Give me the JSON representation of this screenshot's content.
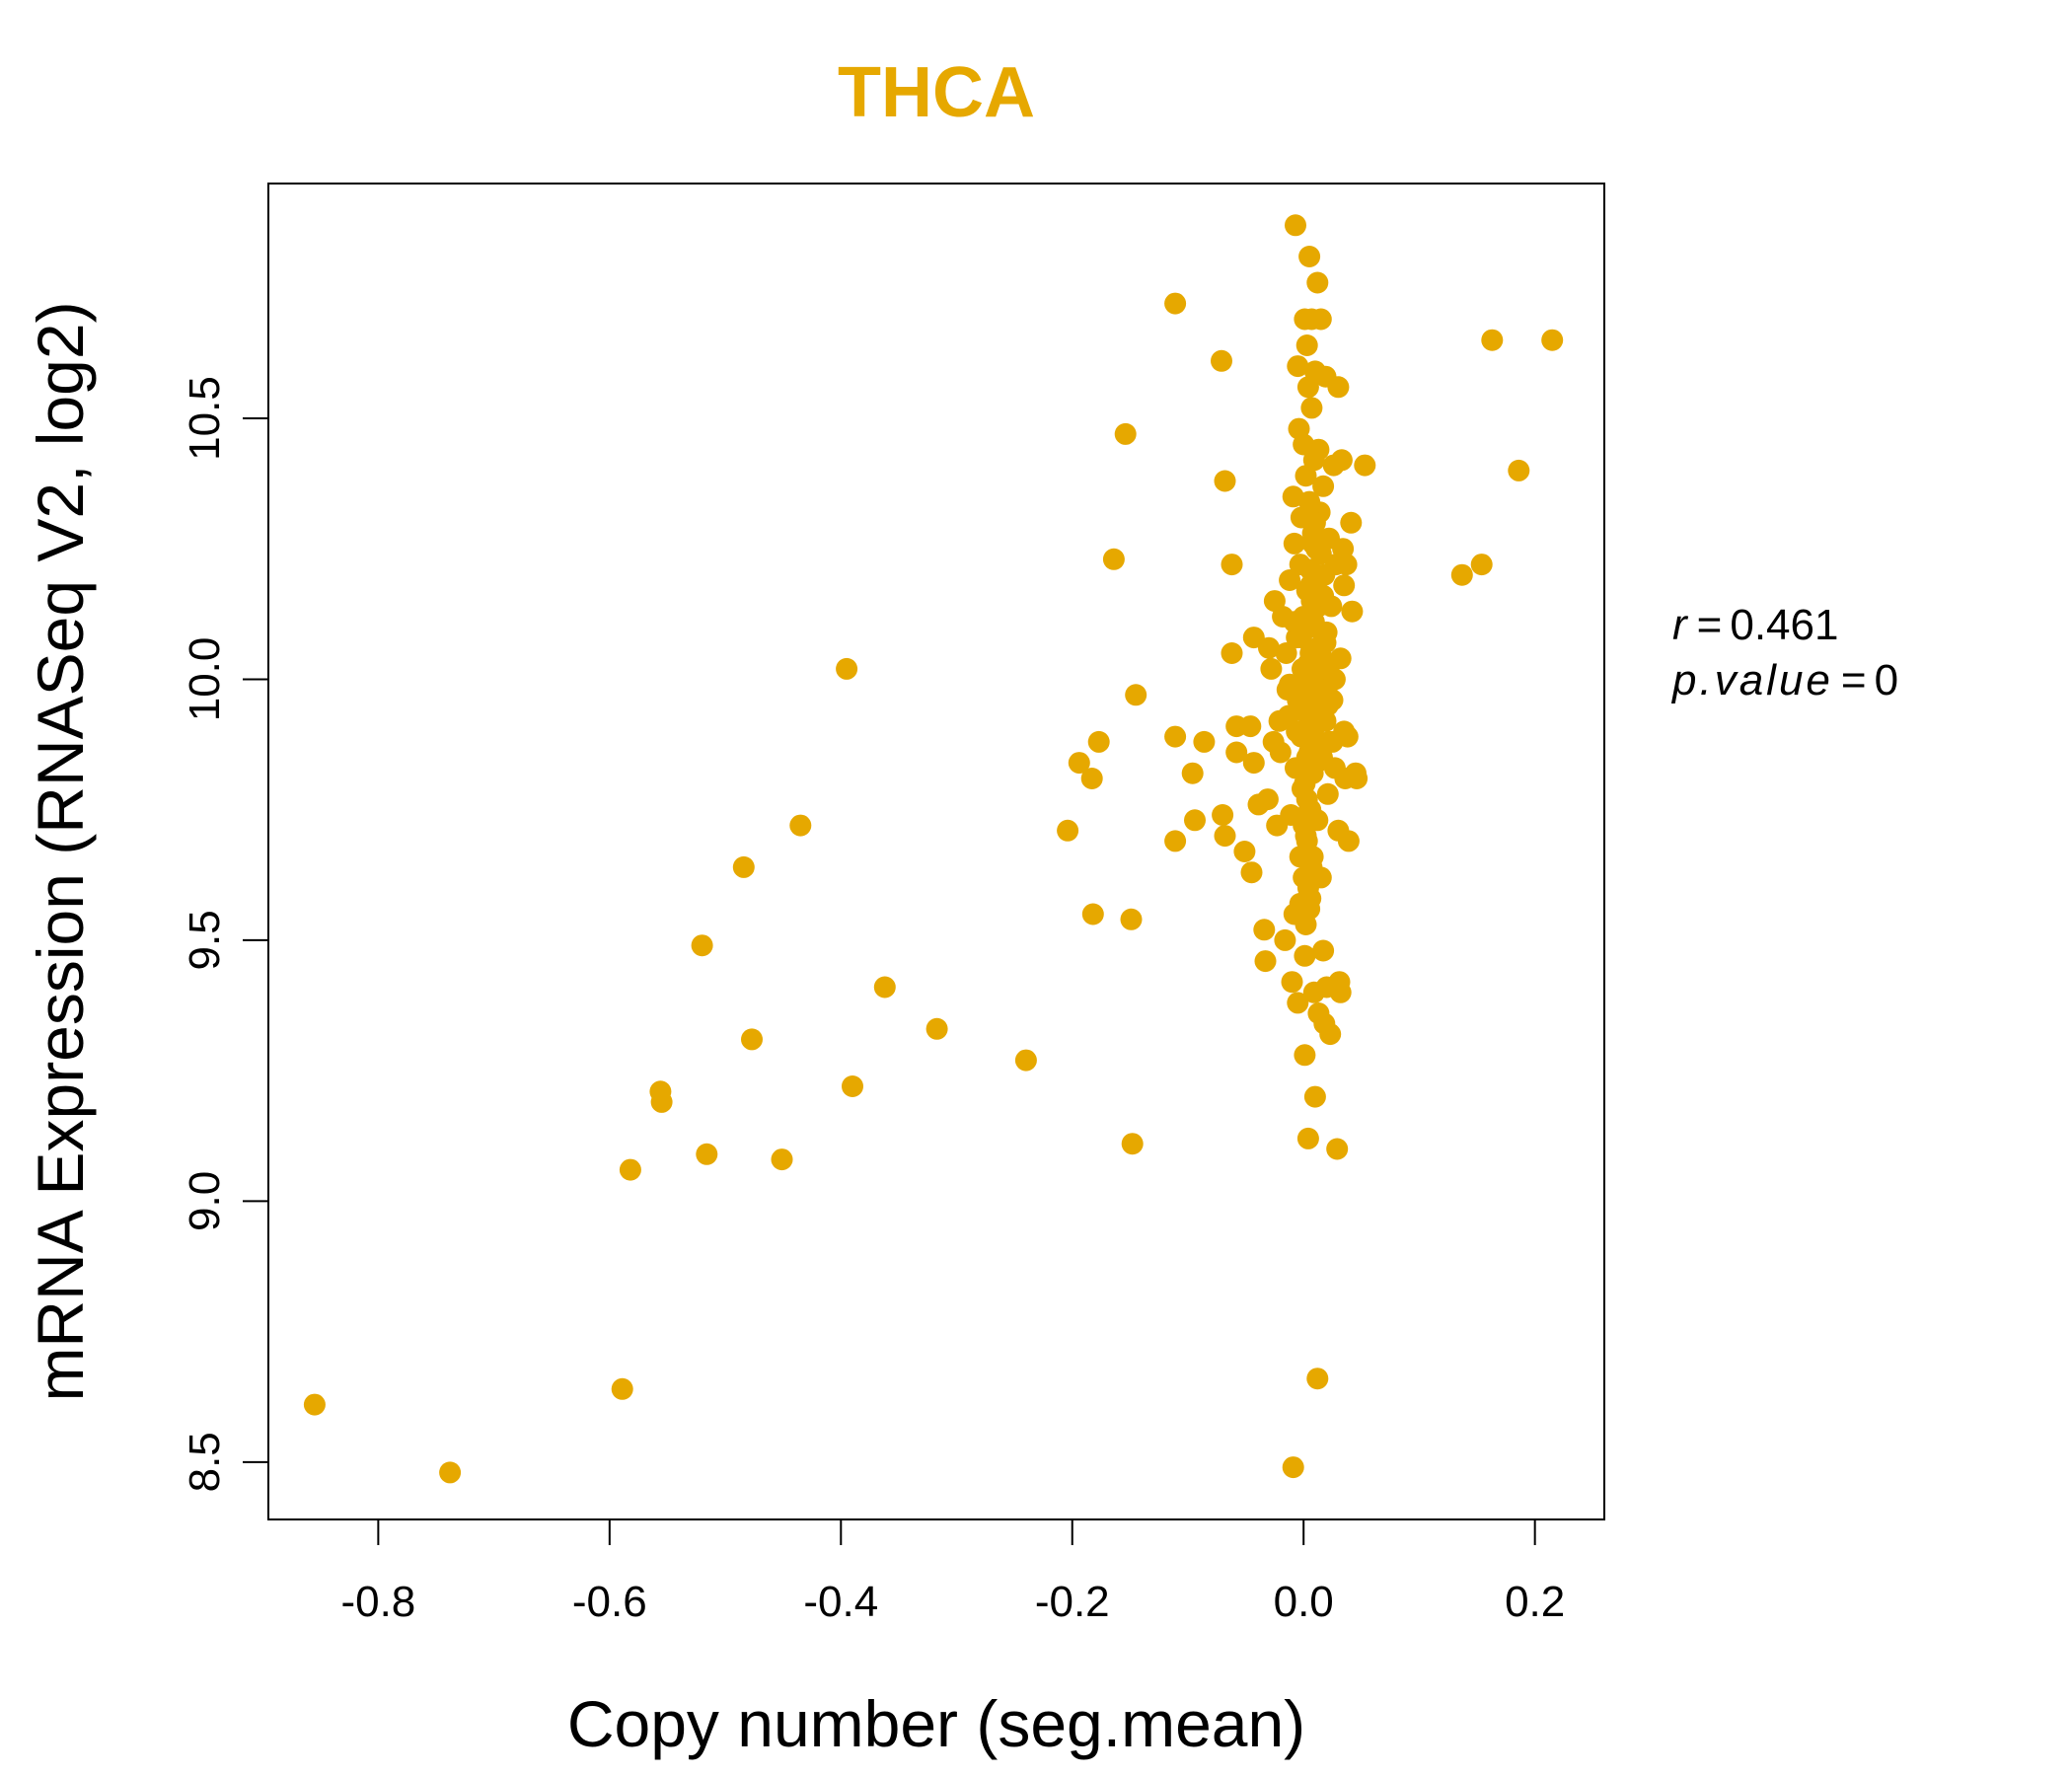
{
  "chart_data": {
    "type": "scatter",
    "title": "THCA",
    "xlabel": "Copy number (seg.mean)",
    "ylabel": "mRNA Expression (RNASeq V2, log2)",
    "xlim": [
      -0.895,
      0.26
    ],
    "ylim": [
      8.39,
      10.95
    ],
    "xticks": [
      -0.8,
      -0.6,
      -0.4,
      -0.2,
      0.0,
      0.2
    ],
    "xtick_labels": [
      "-0.8",
      "-0.6",
      "-0.4",
      "-0.2",
      "0.0",
      "0.2"
    ],
    "yticks": [
      8.5,
      9.0,
      9.5,
      10.0,
      10.5
    ],
    "ytick_labels": [
      "8.5",
      "9.0",
      "9.5",
      "10.0",
      "10.5"
    ],
    "grid": false,
    "colors": {
      "points": "#E6A800",
      "title": "#E6A800",
      "axis": "#000000"
    },
    "stats": {
      "r_label": "r",
      "r_value": "0.461",
      "p_label": "p.value",
      "p_value": "0"
    },
    "points": [
      [
        -0.855,
        8.61
      ],
      [
        -0.738,
        8.48
      ],
      [
        -0.589,
        8.64
      ],
      [
        -0.582,
        9.06
      ],
      [
        -0.556,
        9.21
      ],
      [
        -0.555,
        9.19
      ],
      [
        -0.52,
        9.49
      ],
      [
        -0.516,
        9.09
      ],
      [
        -0.484,
        9.64
      ],
      [
        -0.477,
        9.31
      ],
      [
        -0.451,
        9.08
      ],
      [
        -0.435,
        9.72
      ],
      [
        -0.395,
        10.02
      ],
      [
        -0.39,
        9.22
      ],
      [
        -0.362,
        9.41
      ],
      [
        -0.317,
        9.33
      ],
      [
        -0.24,
        9.27
      ],
      [
        -0.204,
        9.71
      ],
      [
        -0.194,
        9.84
      ],
      [
        -0.183,
        9.81
      ],
      [
        -0.182,
        9.55
      ],
      [
        -0.177,
        9.88
      ],
      [
        -0.164,
        10.23
      ],
      [
        -0.154,
        10.47
      ],
      [
        -0.149,
        9.54
      ],
      [
        -0.148,
        9.11
      ],
      [
        -0.145,
        9.97
      ],
      [
        -0.111,
        10.72
      ],
      [
        -0.111,
        9.89
      ],
      [
        -0.111,
        9.69
      ],
      [
        -0.096,
        9.82
      ],
      [
        -0.094,
        9.73
      ],
      [
        -0.086,
        9.88
      ],
      [
        -0.071,
        10.61
      ],
      [
        -0.07,
        9.74
      ],
      [
        -0.068,
        9.7
      ],
      [
        -0.068,
        10.38
      ],
      [
        -0.062,
        10.22
      ],
      [
        -0.062,
        10.05
      ],
      [
        -0.058,
        9.91
      ],
      [
        -0.058,
        9.86
      ],
      [
        -0.051,
        9.67
      ],
      [
        -0.046,
        9.91
      ],
      [
        -0.045,
        9.63
      ],
      [
        -0.043,
        9.84
      ],
      [
        -0.043,
        10.08
      ],
      [
        -0.039,
        9.76
      ],
      [
        -0.034,
        9.52
      ],
      [
        -0.033,
        9.46
      ],
      [
        -0.031,
        9.77
      ],
      [
        -0.03,
        10.06
      ],
      [
        -0.028,
        10.02
      ],
      [
        -0.026,
        9.88
      ],
      [
        -0.025,
        10.15
      ],
      [
        -0.023,
        9.72
      ],
      [
        -0.021,
        9.92
      ],
      [
        -0.02,
        9.86
      ],
      [
        -0.018,
        10.12
      ],
      [
        -0.016,
        9.5
      ],
      [
        -0.015,
        10.05
      ],
      [
        -0.014,
        9.98
      ],
      [
        -0.013,
        9.93
      ],
      [
        -0.012,
        10.19
      ],
      [
        -0.011,
        9.74
      ],
      [
        -0.01,
        9.42
      ],
      [
        -0.009,
        10.35
      ],
      [
        -0.009,
        8.49
      ],
      [
        -0.008,
        10.26
      ],
      [
        -0.008,
        9.55
      ],
      [
        -0.007,
        9.83
      ],
      [
        -0.007,
        10.87
      ],
      [
        -0.006,
        10.08
      ],
      [
        -0.005,
        9.38
      ],
      [
        -0.005,
        10.6
      ],
      [
        -0.005,
        9.96
      ],
      [
        -0.004,
        10.48
      ],
      [
        -0.003,
        9.57
      ],
      [
        -0.003,
        10.22
      ],
      [
        -0.002,
        10.31
      ],
      [
        -0.002,
        9.89
      ],
      [
        -0.001,
        9.79
      ],
      [
        0.0,
        10.45
      ],
      [
        0.0,
        9.62
      ],
      [
        0.0,
        10.12
      ],
      [
        0.001,
        10.69
      ],
      [
        0.001,
        9.47
      ],
      [
        0.001,
        9.28
      ],
      [
        0.002,
        10.39
      ],
      [
        0.002,
        10.01
      ],
      [
        0.002,
        9.7
      ],
      [
        0.003,
        10.64
      ],
      [
        0.003,
        9.85
      ],
      [
        0.003,
        10.17
      ],
      [
        0.004,
        10.56
      ],
      [
        0.004,
        9.93
      ],
      [
        0.004,
        9.12
      ],
      [
        0.005,
        10.81
      ],
      [
        0.005,
        10.34
      ],
      [
        0.005,
        9.75
      ],
      [
        0.006,
        10.21
      ],
      [
        0.006,
        9.58
      ],
      [
        0.006,
        10.05
      ],
      [
        0.007,
        10.69
      ],
      [
        0.007,
        9.91
      ],
      [
        0.007,
        10.52
      ],
      [
        0.008,
        10.28
      ],
      [
        0.008,
        9.82
      ],
      [
        0.008,
        9.66
      ],
      [
        0.009,
        10.42
      ],
      [
        0.009,
        10.1
      ],
      [
        0.009,
        9.4
      ],
      [
        0.01,
        10.0
      ],
      [
        0.01,
        9.2
      ],
      [
        0.01,
        10.59
      ],
      [
        0.011,
        9.88
      ],
      [
        0.011,
        10.25
      ],
      [
        0.012,
        10.76
      ],
      [
        0.012,
        8.66
      ],
      [
        0.012,
        9.73
      ],
      [
        0.013,
        10.44
      ],
      [
        0.013,
        10.14
      ],
      [
        0.013,
        9.36
      ],
      [
        0.014,
        10.32
      ],
      [
        0.014,
        9.95
      ],
      [
        0.015,
        9.62
      ],
      [
        0.015,
        10.69
      ],
      [
        0.016,
        10.04
      ],
      [
        0.016,
        9.85
      ],
      [
        0.017,
        10.37
      ],
      [
        0.017,
        9.48
      ],
      [
        0.018,
        10.2
      ],
      [
        0.018,
        9.34
      ],
      [
        0.019,
        10.58
      ],
      [
        0.019,
        9.92
      ],
      [
        0.02,
        9.41
      ],
      [
        0.02,
        10.09
      ],
      [
        0.021,
        9.78
      ],
      [
        0.022,
        10.27
      ],
      [
        0.022,
        9.88
      ],
      [
        0.023,
        9.32
      ],
      [
        0.024,
        10.14
      ],
      [
        0.025,
        9.96
      ],
      [
        0.026,
        10.41
      ],
      [
        0.027,
        9.83
      ],
      [
        0.028,
        10.22
      ],
      [
        0.029,
        9.1
      ],
      [
        0.03,
        10.56
      ],
      [
        0.03,
        9.71
      ],
      [
        0.031,
        9.42
      ],
      [
        0.032,
        10.04
      ],
      [
        0.032,
        9.4
      ],
      [
        0.033,
        10.42
      ],
      [
        0.034,
        10.25
      ],
      [
        0.035,
        9.9
      ],
      [
        0.035,
        10.18
      ],
      [
        0.036,
        9.81
      ],
      [
        0.037,
        10.22
      ],
      [
        0.038,
        9.89
      ],
      [
        0.039,
        9.69
      ],
      [
        0.041,
        10.3
      ],
      [
        0.042,
        10.13
      ],
      [
        0.045,
        9.82
      ],
      [
        0.046,
        9.81
      ],
      [
        0.053,
        10.41
      ],
      [
        0.137,
        10.2
      ],
      [
        0.154,
        10.22
      ],
      [
        0.163,
        10.65
      ],
      [
        0.186,
        10.4
      ],
      [
        0.215,
        10.65
      ],
      [
        -0.004,
        9.96
      ],
      [
        0.0,
        9.9
      ],
      [
        0.002,
        9.99
      ],
      [
        0.004,
        10.03
      ],
      [
        0.006,
        9.94
      ],
      [
        0.008,
        9.97
      ],
      [
        0.01,
        9.91
      ],
      [
        0.012,
        10.06
      ],
      [
        -0.002,
        10.08
      ],
      [
        0.001,
        9.8
      ],
      [
        0.003,
        9.77
      ],
      [
        0.005,
        9.86
      ],
      [
        0.007,
        10.15
      ],
      [
        0.009,
        10.11
      ],
      [
        0.011,
        9.84
      ],
      [
        0.013,
        10.0
      ],
      [
        -0.006,
        9.9
      ],
      [
        -0.001,
        10.02
      ],
      [
        0.002,
        9.94
      ],
      [
        0.004,
        10.1
      ],
      [
        0.014,
        9.97
      ],
      [
        0.016,
        9.92
      ],
      [
        0.018,
        10.03
      ],
      [
        0.02,
        9.98
      ],
      [
        -0.003,
        9.66
      ],
      [
        0.0,
        9.72
      ],
      [
        0.003,
        9.69
      ],
      [
        0.006,
        9.75
      ],
      [
        0.015,
        10.24
      ],
      [
        0.017,
        10.16
      ],
      [
        0.019,
        10.07
      ],
      [
        0.021,
        9.95
      ],
      [
        0.023,
        10.03
      ],
      [
        0.025,
        9.88
      ],
      [
        0.027,
        10.0
      ],
      [
        0.01,
        10.3
      ],
      [
        0.008,
        10.26
      ],
      [
        0.006,
        10.18
      ],
      [
        -0.008,
        10.11
      ],
      [
        -0.012,
        9.99
      ],
      [
        0.004,
        9.6
      ],
      [
        0.007,
        9.64
      ],
      [
        0.002,
        9.53
      ],
      [
        0.005,
        9.56
      ]
    ]
  }
}
